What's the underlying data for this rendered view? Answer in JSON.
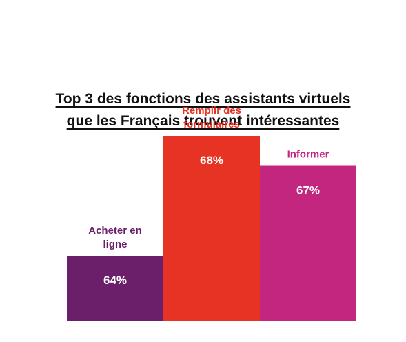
{
  "chart_data": {
    "type": "bar",
    "title": [
      "Top 3 des fonctions des assistants virtuels",
      "que les Français trouvent intéressantes"
    ],
    "categories": [
      [
        "Acheter en",
        "ligne"
      ],
      [
        "Remplir des",
        "formulaires"
      ],
      [
        "Informer"
      ]
    ],
    "values": [
      64,
      68,
      67
    ],
    "value_labels": [
      "64%",
      "68%",
      "67%"
    ],
    "colors": [
      "#6b1f6b",
      "#e63323",
      "#c2267e"
    ],
    "label_colors": [
      "#6b1f6b",
      "#e63323",
      "#c2267e"
    ],
    "grid": false,
    "legend": "none"
  }
}
